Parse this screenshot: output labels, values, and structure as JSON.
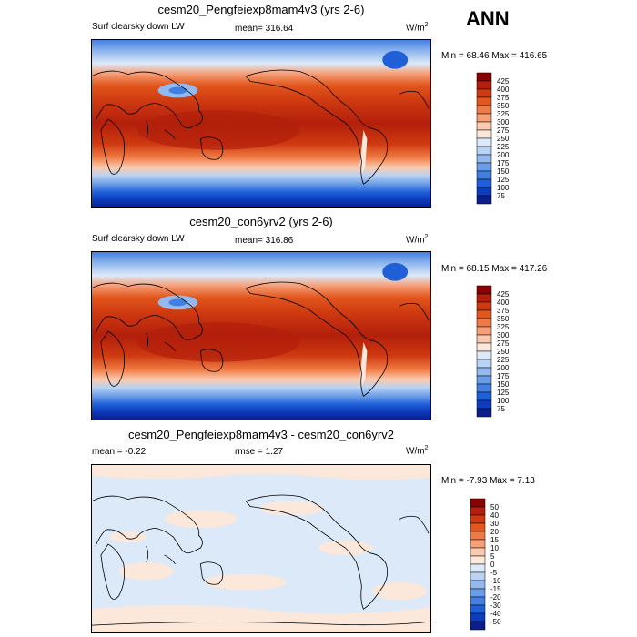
{
  "season_label": "ANN",
  "panels": [
    {
      "title": "cesm20_Pengfeiexp8mam4v3 (yrs 2-6)",
      "left_label": "Surf clearsky down LW",
      "center_label": "mean= 316.64",
      "units_base": "W/m",
      "units_exp": "2",
      "minmax": "Min =  68.46 Max = 416.65",
      "colorbar_levels": [
        "425",
        "400",
        "375",
        "350",
        "325",
        "300",
        "275",
        "250",
        "225",
        "200",
        "175",
        "150",
        "125",
        "100",
        "75"
      ],
      "colorbar_colors": [
        "#8b0000",
        "#b21f0b",
        "#cf3a10",
        "#e2571d",
        "#ef7a43",
        "#f6a07a",
        "#fbc9ad",
        "#fbe8da",
        "#dce9f8",
        "#b8d3f3",
        "#93b9ee",
        "#6a9de8",
        "#437fe3",
        "#1f5fd8",
        "#0c3cbf",
        "#0a1f8c"
      ]
    },
    {
      "title": "cesm20_con6yrv2 (yrs 2-6)",
      "left_label": "Surf clearsky down LW",
      "center_label": "mean= 316.86",
      "units_base": "W/m",
      "units_exp": "2",
      "minmax": "Min =  68.15 Max = 417.26",
      "colorbar_levels": [
        "425",
        "400",
        "375",
        "350",
        "325",
        "300",
        "275",
        "250",
        "225",
        "200",
        "175",
        "150",
        "125",
        "100",
        "75"
      ],
      "colorbar_colors": [
        "#8b0000",
        "#b21f0b",
        "#cf3a10",
        "#e2571d",
        "#ef7a43",
        "#f6a07a",
        "#fbc9ad",
        "#fbe8da",
        "#dce9f8",
        "#b8d3f3",
        "#93b9ee",
        "#6a9de8",
        "#437fe3",
        "#1f5fd8",
        "#0c3cbf",
        "#0a1f8c"
      ]
    },
    {
      "title": "cesm20_Pengfeiexp8mam4v3 - cesm20_con6yrv2",
      "left_label": "mean =  -0.22",
      "center_label": "rmse =   1.27",
      "units_base": "W/m",
      "units_exp": "2",
      "minmax": "Min =  -7.93 Max =   7.13",
      "colorbar_levels": [
        "50",
        "40",
        "30",
        "20",
        "15",
        "10",
        "5",
        "0",
        "-5",
        "-10",
        "-15",
        "-20",
        "-30",
        "-40",
        "-50"
      ],
      "colorbar_colors": [
        "#8b0000",
        "#b21f0b",
        "#cf3a10",
        "#e2571d",
        "#ef7a43",
        "#f6a07a",
        "#fbc9ad",
        "#fbe8da",
        "#dce9f8",
        "#b8d3f3",
        "#93b9ee",
        "#6a9de8",
        "#437fe3",
        "#1f5fd8",
        "#0c3cbf",
        "#0a1f8c"
      ]
    }
  ]
}
